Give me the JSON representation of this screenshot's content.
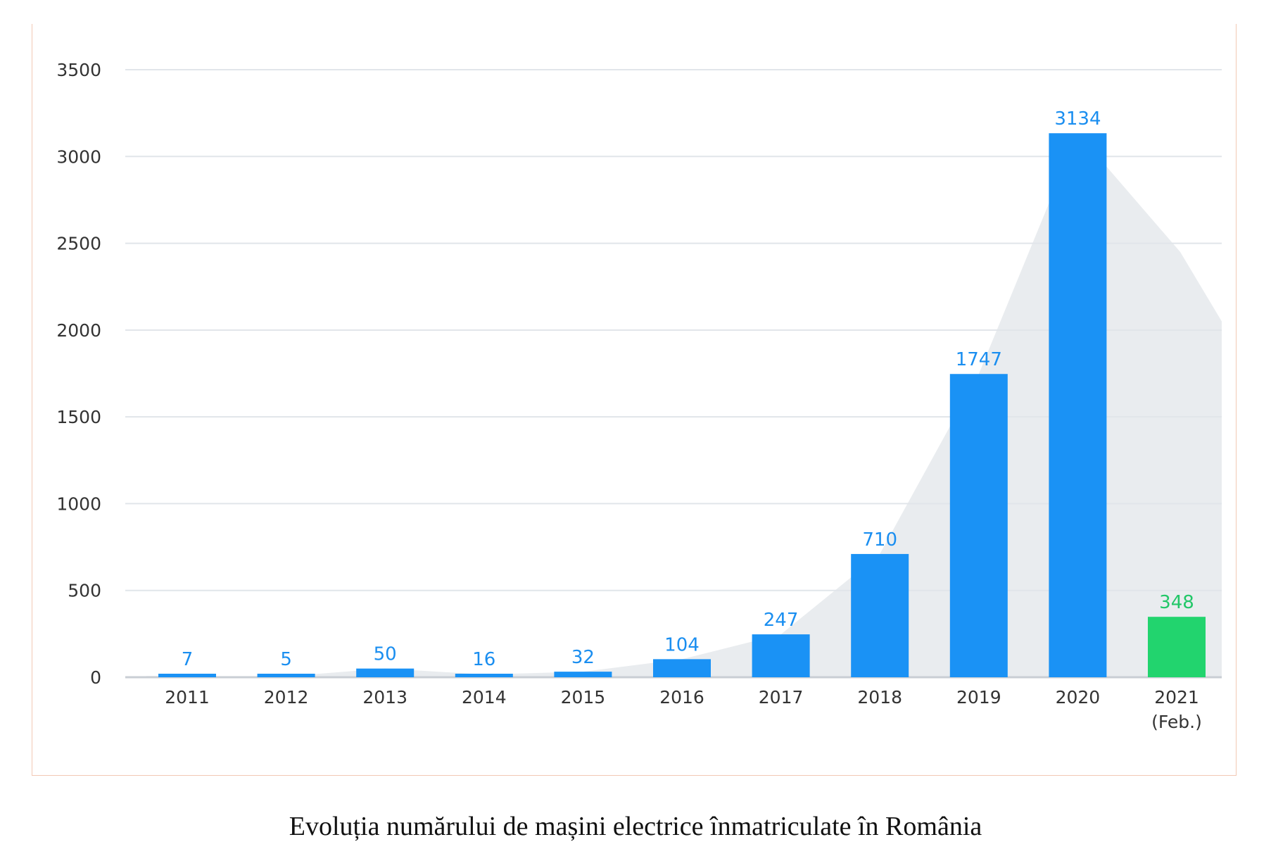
{
  "caption": "Evoluția numărului de mașini electrice înmatriculate în România",
  "chart_data": {
    "type": "bar",
    "categories": [
      "2011",
      "2012",
      "2013",
      "2014",
      "2015",
      "2016",
      "2017",
      "2018",
      "2019",
      "2020",
      "2021"
    ],
    "category_sublabels": [
      "",
      "",
      "",
      "",
      "",
      "",
      "",
      "",
      "",
      "",
      "(Feb.)"
    ],
    "values": [
      7,
      5,
      50,
      16,
      32,
      104,
      247,
      710,
      1747,
      3134,
      348
    ],
    "value_labels": [
      "7",
      "5",
      "50",
      "16",
      "32",
      "104",
      "247",
      "710",
      "1747",
      "3134",
      "348"
    ],
    "bar_colors": [
      "#1a92f5",
      "#1a92f5",
      "#1a92f5",
      "#1a92f5",
      "#1a92f5",
      "#1a92f5",
      "#1a92f5",
      "#1a92f5",
      "#1a92f5",
      "#1a92f5",
      "#22d46e"
    ],
    "label_colors": [
      "#1a8ef0",
      "#1a8ef0",
      "#1a8ef0",
      "#1a8ef0",
      "#1a8ef0",
      "#1a8ef0",
      "#1a8ef0",
      "#1a8ef0",
      "#1a8ef0",
      "#1a8ef0",
      "#22c768"
    ],
    "background_area": [
      7,
      5,
      50,
      16,
      32,
      104,
      247,
      710,
      1747,
      3134,
      2450,
      2050
    ],
    "yticks": [
      "0",
      "500",
      "1000",
      "1500",
      "2000",
      "2500",
      "3000",
      "3500"
    ],
    "ylim": [
      0,
      3500
    ],
    "grid": true,
    "legend": "none",
    "colors": {
      "bar": "#1a92f5",
      "highlight_bar": "#22d46e",
      "area": "#e9ecef",
      "grid": "#e1e5ea",
      "frame": "#f2c9b4"
    }
  }
}
